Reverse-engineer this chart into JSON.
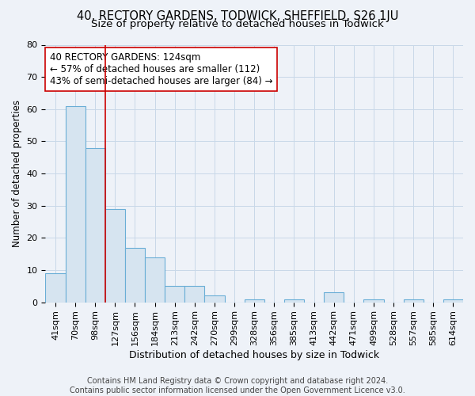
{
  "title1": "40, RECTORY GARDENS, TODWICK, SHEFFIELD, S26 1JU",
  "title2": "Size of property relative to detached houses in Todwick",
  "xlabel": "Distribution of detached houses by size in Todwick",
  "ylabel": "Number of detached properties",
  "categories": [
    "41sqm",
    "70sqm",
    "98sqm",
    "127sqm",
    "156sqm",
    "184sqm",
    "213sqm",
    "242sqm",
    "270sqm",
    "299sqm",
    "328sqm",
    "356sqm",
    "385sqm",
    "413sqm",
    "442sqm",
    "471sqm",
    "499sqm",
    "528sqm",
    "557sqm",
    "585sqm",
    "614sqm"
  ],
  "values": [
    9,
    61,
    48,
    29,
    17,
    14,
    5,
    5,
    2,
    0,
    1,
    0,
    1,
    0,
    3,
    0,
    1,
    0,
    1,
    0,
    1
  ],
  "bar_color": "#d6e4f0",
  "bar_edge_color": "#6aaed6",
  "bar_linewidth": 0.8,
  "grid_color": "#c8d8e8",
  "background_color": "#eef2f8",
  "vline_color": "#cc0000",
  "vline_pos": 2.5,
  "annotation_text": "40 RECTORY GARDENS: 124sqm\n← 57% of detached houses are smaller (112)\n43% of semi-detached houses are larger (84) →",
  "annotation_box_color": "#ffffff",
  "annotation_edge_color": "#cc0000",
  "ylim": [
    0,
    80
  ],
  "yticks": [
    0,
    10,
    20,
    30,
    40,
    50,
    60,
    70,
    80
  ],
  "footer1": "Contains HM Land Registry data © Crown copyright and database right 2024.",
  "footer2": "Contains public sector information licensed under the Open Government Licence v3.0.",
  "title1_fontsize": 10.5,
  "title2_fontsize": 9.5,
  "xlabel_fontsize": 9,
  "ylabel_fontsize": 8.5,
  "tick_fontsize": 8,
  "annotation_fontsize": 8.5,
  "footer_fontsize": 7
}
